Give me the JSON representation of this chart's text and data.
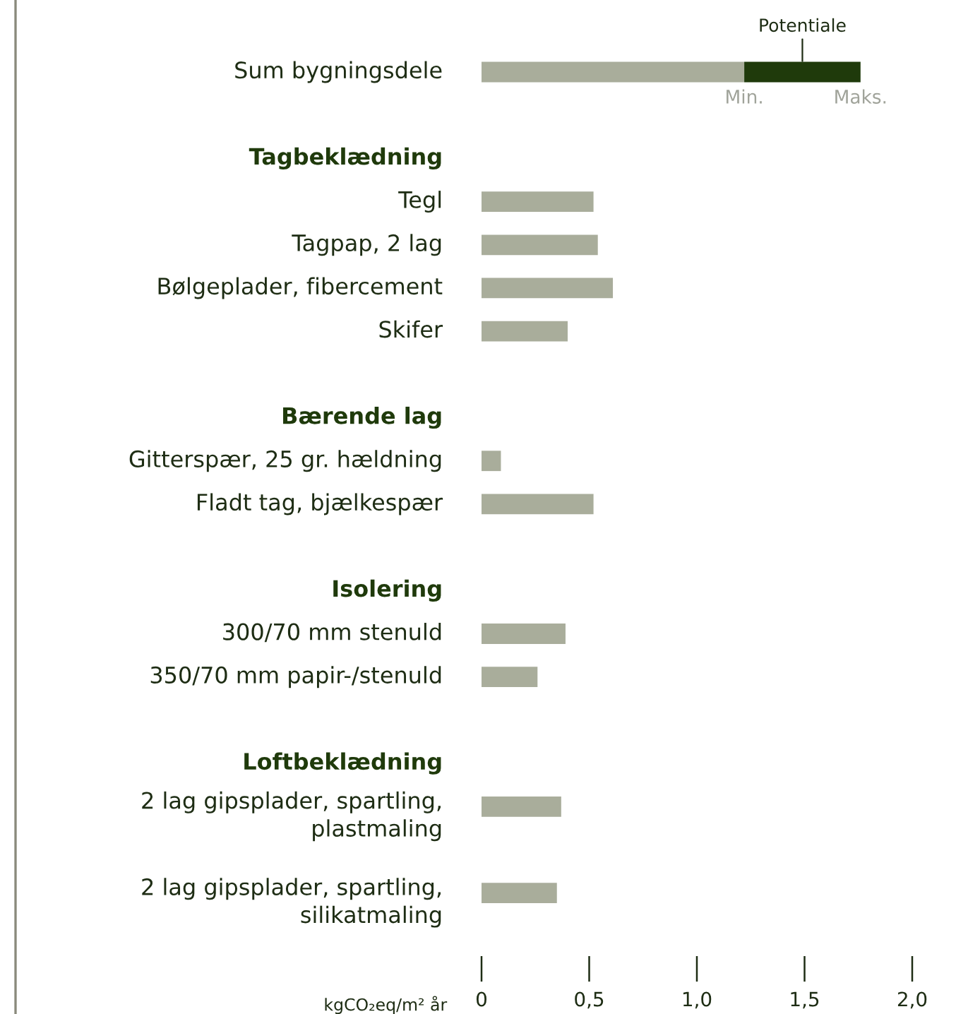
{
  "chart_data": {
    "type": "bar",
    "orientation": "horizontal",
    "stacked": true,
    "categories": [
      "Sum bygningsdele",
      null,
      "Tagbeklædning",
      "Tegl",
      "Tagpap, 2 lag",
      "Bølgeplader, fibercement",
      "Skifer",
      null,
      "Bærende lag",
      "Gitterspær, 25 gr. hældning",
      "Fladt tag, bjælkespær",
      null,
      "Isolering",
      "300/70 mm stenuld",
      "350/70 mm papir-/stenuld",
      null,
      "Loftbeklædning",
      "2 lag gipsplader, spartling,\nplastmaling",
      null,
      "2 lag gipsplader, spartling,\nsilikatmaling"
    ],
    "series": [
      {
        "color": "#a9ad9b",
        "values": [
          1.22,
          null,
          null,
          0.52,
          0.54,
          0.61,
          0.4,
          null,
          null,
          0.09,
          0.52,
          null,
          null,
          0.39,
          0.26,
          null,
          null,
          0.37,
          null,
          0.35
        ]
      },
      {
        "name": "Potentiale",
        "color": "#1f3a0b",
        "values": [
          0.54,
          null,
          null,
          null,
          null,
          null,
          null,
          null,
          null,
          null,
          null,
          null,
          null,
          null,
          null,
          null,
          null,
          null,
          null,
          null
        ]
      }
    ],
    "xlim": [
      0,
      2.0
    ],
    "xticks": [
      0,
      {
        "value": 0.5,
        "label": "0,5"
      },
      {
        "value": 1.0,
        "label": "1,0"
      },
      {
        "value": 1.5,
        "label": "1,5"
      },
      {
        "value": 2.0,
        "label": "2,0"
      }
    ],
    "xlabel": "kgCO₂eq/m² år",
    "grid": false,
    "legend": false,
    "annotations": [
      {
        "text": "Min.",
        "x": 1.22,
        "y": "Sum bygningsdele"
      },
      {
        "text": "Maks.",
        "x": 1.76,
        "y": "Sum bygningsdele"
      }
    ]
  }
}
